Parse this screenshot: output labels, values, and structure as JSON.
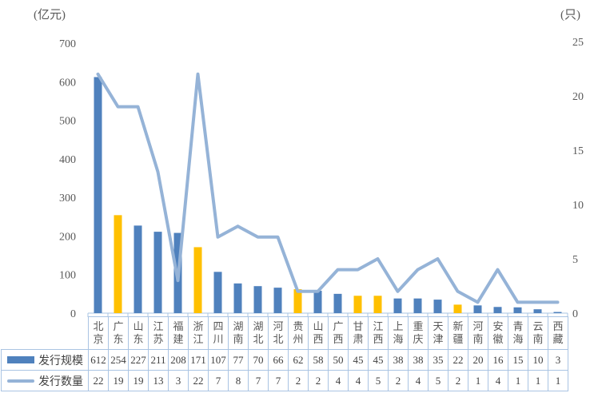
{
  "units": {
    "left": "(亿元)",
    "right": "(只)"
  },
  "colors": {
    "bar_default": "#4f81bd",
    "bar_highlight": "#ffc000",
    "line": "#95b3d7",
    "border": "#aac4e3",
    "tick_text": "#595959",
    "table_text": "#404040"
  },
  "chart_data": {
    "type": "bar+line combo with data table",
    "title": "",
    "categories": [
      "北京",
      "广东",
      "山东",
      "江苏",
      "福建",
      "浙江",
      "四川",
      "湖南",
      "湖北",
      "河北",
      "贵州",
      "山西",
      "广西",
      "甘肃",
      "江西",
      "上海",
      "重庆",
      "天津",
      "新疆",
      "河南",
      "安徽",
      "青海",
      "云南",
      "西藏"
    ],
    "series": [
      {
        "name": "发行规模",
        "type": "bar",
        "axis": "left",
        "values": [
          612,
          254,
          227,
          211,
          208,
          171,
          107,
          77,
          70,
          66,
          62,
          58,
          50,
          45,
          45,
          38,
          38,
          35,
          22,
          20,
          16,
          15,
          10,
          3
        ],
        "highlight_indices": [
          1,
          5,
          10,
          13,
          14,
          18
        ]
      },
      {
        "name": "发行数量",
        "type": "line",
        "axis": "right",
        "values": [
          22,
          19,
          19,
          13,
          3,
          22,
          7,
          8,
          7,
          7,
          2,
          2,
          4,
          4,
          5,
          2,
          4,
          5,
          2,
          1,
          4,
          1,
          1,
          1
        ]
      }
    ],
    "y_left": {
      "label": "(亿元)",
      "ticks": [
        700,
        600,
        500,
        400,
        300,
        200,
        100,
        0
      ],
      "range": [
        0,
        700
      ]
    },
    "y_right": {
      "label": "(只)",
      "ticks": [
        25,
        20,
        15,
        10,
        5,
        0
      ],
      "range": [
        0,
        25
      ]
    },
    "grid": false,
    "legend_position": "table-left"
  }
}
